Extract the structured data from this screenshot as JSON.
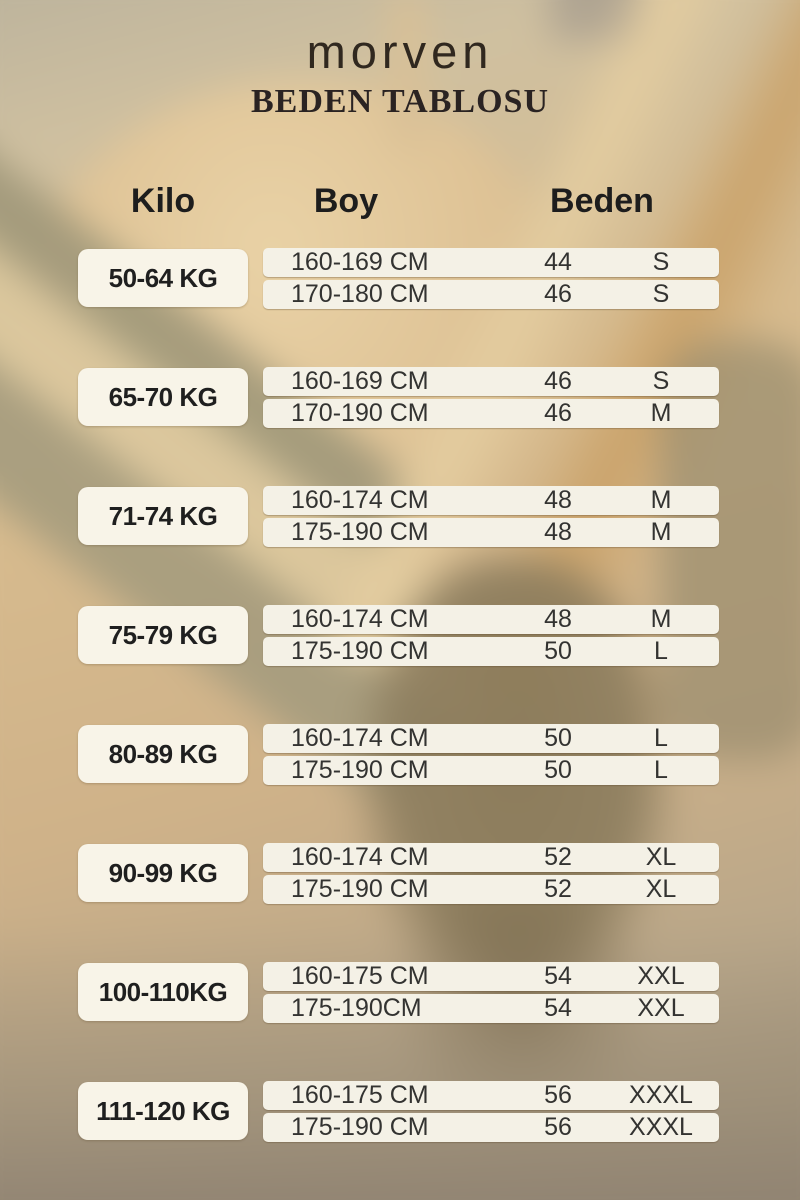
{
  "brand": "morven",
  "title": "BEDEN TABLOSU",
  "colors": {
    "background_tan": "#d2b68c",
    "background_olive": "#a29a7c",
    "background_ochre": "#c9a066",
    "box_cream": "#f5f1e6",
    "text_dark": "#1f1f1f"
  },
  "table": {
    "headers": {
      "weight": "Kilo",
      "height": "Boy",
      "size": "Beden"
    },
    "groups": [
      {
        "weight": "50-64 KG",
        "rows": [
          {
            "height": "160-169 CM",
            "size_num": "44",
            "size_label": "S"
          },
          {
            "height": "170-180 CM",
            "size_num": "46",
            "size_label": "S"
          }
        ]
      },
      {
        "weight": "65-70 KG",
        "rows": [
          {
            "height": "160-169 CM",
            "size_num": "46",
            "size_label": "S"
          },
          {
            "height": "170-190 CM",
            "size_num": "46",
            "size_label": "M"
          }
        ]
      },
      {
        "weight": "71-74 KG",
        "rows": [
          {
            "height": "160-174 CM",
            "size_num": "48",
            "size_label": "M"
          },
          {
            "height": "175-190 CM",
            "size_num": "48",
            "size_label": "M"
          }
        ]
      },
      {
        "weight": "75-79 KG",
        "rows": [
          {
            "height": "160-174 CM",
            "size_num": "48",
            "size_label": "M"
          },
          {
            "height": "175-190 CM",
            "size_num": "50",
            "size_label": "L"
          }
        ]
      },
      {
        "weight": "80-89 KG",
        "rows": [
          {
            "height": "160-174 CM",
            "size_num": "50",
            "size_label": "L"
          },
          {
            "height": "175-190 CM",
            "size_num": "50",
            "size_label": "L"
          }
        ]
      },
      {
        "weight": "90-99 KG",
        "rows": [
          {
            "height": "160-174 CM",
            "size_num": "52",
            "size_label": "XL"
          },
          {
            "height": "175-190 CM",
            "size_num": "52",
            "size_label": "XL"
          }
        ]
      },
      {
        "weight": "100-110KG",
        "rows": [
          {
            "height": "160-175 CM",
            "size_num": "54",
            "size_label": "XXL"
          },
          {
            "height": "175-190CM",
            "size_num": "54",
            "size_label": "XXL"
          }
        ]
      },
      {
        "weight": "111-120 KG",
        "rows": [
          {
            "height": "160-175 CM",
            "size_num": "56",
            "size_label": "XXXL"
          },
          {
            "height": "175-190 CM",
            "size_num": "56",
            "size_label": "XXXL"
          }
        ]
      }
    ]
  }
}
